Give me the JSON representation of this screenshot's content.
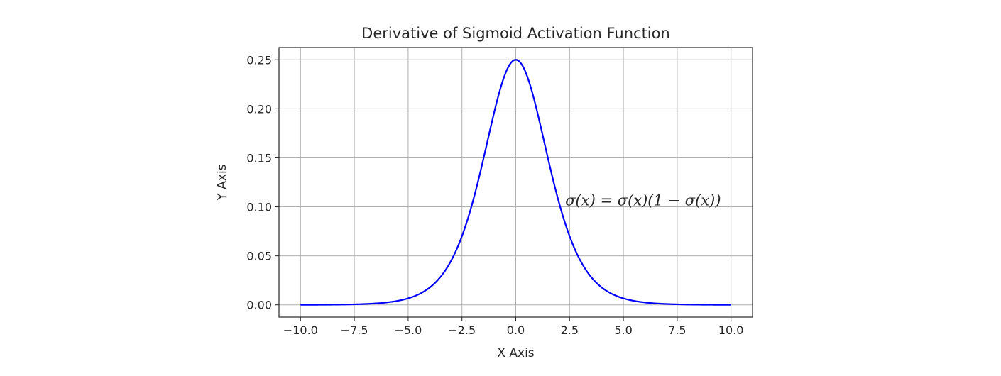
{
  "chart_data": {
    "type": "line",
    "title": "Derivative of Sigmoid Activation Function",
    "xlabel": "X Axis",
    "ylabel": "Y Axis",
    "xlim": [
      -11.0,
      11.0
    ],
    "ylim": [
      -0.0125,
      0.2625
    ],
    "xticks": [
      -10.0,
      -7.5,
      -5.0,
      -2.5,
      0.0,
      2.5,
      5.0,
      7.5,
      10.0
    ],
    "xtick_labels": [
      "−10.0",
      "−7.5",
      "−5.0",
      "−2.5",
      "0.0",
      "2.5",
      "5.0",
      "7.5",
      "10.0"
    ],
    "yticks": [
      0.0,
      0.05,
      0.1,
      0.15,
      0.2,
      0.25
    ],
    "ytick_labels": [
      "0.00",
      "0.05",
      "0.10",
      "0.15",
      "0.20",
      "0.25"
    ],
    "grid": true,
    "series": [
      {
        "color": "#0000ff",
        "x": [
          -10,
          -9.5,
          -9,
          -8.5,
          -8,
          -7.5,
          -7,
          -6.5,
          -6,
          -5.5,
          -5,
          -4.5,
          -4,
          -3.5,
          -3,
          -2.5,
          -2,
          -1.5,
          -1,
          -0.5,
          0,
          0.5,
          1,
          1.5,
          2,
          2.5,
          3,
          3.5,
          4,
          4.5,
          5,
          5.5,
          6,
          6.5,
          7,
          7.5,
          8,
          8.5,
          9,
          9.5,
          10
        ],
        "y": [
          4.54e-05,
          7.48e-05,
          0.0001234,
          0.0002034,
          0.0003353,
          0.0005527,
          0.000911,
          0.0015004,
          0.0024665,
          0.0040446,
          0.0066481,
          0.0108407,
          0.0176627,
          0.0285,
          0.0451767,
          0.0701037,
          0.1049936,
          0.1491465,
          0.1966119,
          0.2350037,
          0.25,
          0.2350037,
          0.1966119,
          0.1491465,
          0.1049936,
          0.0701037,
          0.0451767,
          0.0285,
          0.0176627,
          0.0108407,
          0.0066481,
          0.0040446,
          0.0024665,
          0.0015004,
          0.000911,
          0.0005527,
          0.0003353,
          0.0002034,
          0.0001234,
          7.48e-05,
          4.54e-05
        ]
      }
    ],
    "annotation": {
      "text": "σ(x)  = σ(x)(1 − σ(x))",
      "x": 2.3,
      "y": 0.1
    }
  }
}
